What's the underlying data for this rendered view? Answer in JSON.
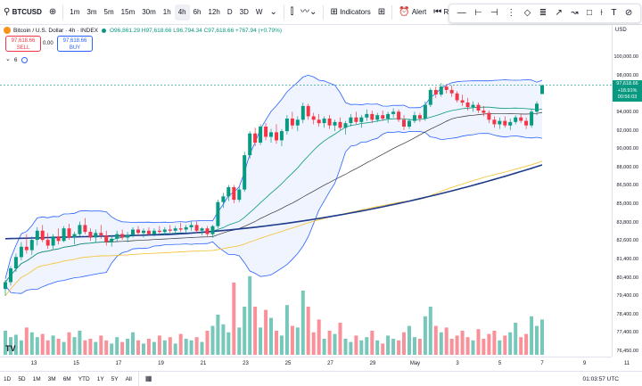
{
  "toolbar": {
    "symbol": "BTCUSD",
    "add_symbol_icon": "plus-circle-icon",
    "intervals": [
      "1m",
      "3m",
      "5m",
      "15m",
      "30m",
      "1h",
      "4h",
      "6h",
      "12h",
      "D",
      "3D",
      "W"
    ],
    "active_interval": "4h",
    "indicators_label": "Indicators",
    "alert_label": "Alert",
    "replay_label": "Repla"
  },
  "legend": {
    "title": "Bitcoin / U.S. Dollar · 4h · INDEX",
    "open": "O96,861.29",
    "high": "H97,618.66",
    "low": "L96,794.34",
    "close": "C97,618.66",
    "change": "+767.94 (+0.79%)"
  },
  "trade": {
    "sell_price": "97,618.66",
    "sell_label": "SELL",
    "spread": "0.00",
    "buy_price": "97,618.66",
    "buy_label": "BUY"
  },
  "indicator_row": {
    "count": "6"
  },
  "price_axis": {
    "currency": "USD",
    "ticks": [
      "100,000.00",
      "98,000.00",
      "96,000.00",
      "94,000.00",
      "92,000.00",
      "90,000.00",
      "88,000.00",
      "86,500.00",
      "85,000.00",
      "83,800.00",
      "82,600.00",
      "81,400.00",
      "80,400.00",
      "79,400.00",
      "78,400.00",
      "77,400.00",
      "76,450.00"
    ],
    "last_price": "97,618.66",
    "last_change": "+18.91%",
    "countdown": "00:56:03"
  },
  "time_axis": {
    "ticks": [
      "13",
      "15",
      "17",
      "19",
      "21",
      "23",
      "25",
      "27",
      "29",
      "May",
      "3",
      "5",
      "7",
      "9",
      "11"
    ]
  },
  "bottombar": {
    "ranges": [
      "1D",
      "5D",
      "1M",
      "3M",
      "6M",
      "YTD",
      "1Y",
      "5Y",
      "All"
    ],
    "calendar_icon": "calendar-icon",
    "clock": "01:03:57 UTC"
  },
  "colors": {
    "up": "#089981",
    "down": "#f23645",
    "bb_band": "#2962ff",
    "ma_long": "#1e3a8a",
    "ma_yellow": "#f5c542",
    "ma_dark": "#333333"
  },
  "chart_data": {
    "type": "candlestick",
    "interval": "4h",
    "x_start_label": "13",
    "y_range": [
      76450,
      100000
    ],
    "candles": [
      [
        79800,
        80600,
        79200,
        80400
      ],
      [
        80400,
        81800,
        80100,
        81600
      ],
      [
        81600,
        82900,
        81300,
        82600
      ],
      [
        82600,
        83900,
        82300,
        83500
      ],
      [
        83500,
        84600,
        82900,
        83200
      ],
      [
        83200,
        84400,
        82800,
        84100
      ],
      [
        84100,
        85200,
        83600,
        84900
      ],
      [
        84900,
        85400,
        83900,
        84100
      ],
      [
        84100,
        84700,
        83300,
        83600
      ],
      [
        83600,
        84600,
        83300,
        84400
      ],
      [
        84400,
        85100,
        83700,
        84000
      ],
      [
        84000,
        85300,
        83900,
        85100
      ],
      [
        85100,
        85500,
        84100,
        84300
      ],
      [
        84300,
        84800,
        83700,
        84600
      ],
      [
        84600,
        85700,
        84400,
        85400
      ],
      [
        85400,
        86000,
        84600,
        84800
      ],
      [
        84800,
        85100,
        84000,
        84300
      ],
      [
        84300,
        85000,
        83900,
        84700
      ],
      [
        84700,
        85400,
        84200,
        84500
      ],
      [
        84500,
        84900,
        83600,
        83900
      ],
      [
        83900,
        84500,
        83500,
        84200
      ],
      [
        84200,
        84900,
        83900,
        84600
      ],
      [
        84600,
        85000,
        84100,
        84300
      ],
      [
        84300,
        84800,
        83900,
        84500
      ],
      [
        84500,
        85200,
        84300,
        85000
      ],
      [
        85000,
        85300,
        84500,
        84700
      ],
      [
        84700,
        85100,
        84300,
        84900
      ],
      [
        84900,
        85200,
        84500,
        84600
      ],
      [
        84600,
        85100,
        84400,
        84900
      ],
      [
        84900,
        85300,
        84600,
        84800
      ],
      [
        84800,
        85200,
        84500,
        85000
      ],
      [
        85000,
        85400,
        84700,
        84900
      ],
      [
        84900,
        85300,
        84600,
        85100
      ],
      [
        85100,
        85600,
        84800,
        85000
      ],
      [
        85000,
        85400,
        84700,
        85200
      ],
      [
        85200,
        85700,
        84900,
        85400
      ],
      [
        85400,
        85700,
        84700,
        84900
      ],
      [
        84900,
        85200,
        84500,
        85100
      ],
      [
        85100,
        85300,
        84400,
        84600
      ],
      [
        84600,
        85400,
        84300,
        85300
      ],
      [
        85300,
        87600,
        85100,
        87400
      ],
      [
        87400,
        88200,
        86900,
        87900
      ],
      [
        87900,
        88900,
        87500,
        88700
      ],
      [
        88700,
        88900,
        87300,
        87600
      ],
      [
        87600,
        88700,
        87400,
        88500
      ],
      [
        88500,
        91800,
        88300,
        91500
      ],
      [
        91500,
        93600,
        91200,
        93400
      ],
      [
        93400,
        93900,
        92300,
        92600
      ],
      [
        92600,
        94200,
        92400,
        94000
      ],
      [
        94000,
        94300,
        92800,
        93100
      ],
      [
        93100,
        93800,
        92600,
        93500
      ],
      [
        93500,
        94200,
        92500,
        92800
      ],
      [
        92800,
        93800,
        92300,
        93600
      ],
      [
        93600,
        95000,
        93300,
        94700
      ],
      [
        94700,
        95300,
        93800,
        94100
      ],
      [
        94100,
        94900,
        93600,
        94600
      ],
      [
        94600,
        96100,
        94300,
        95800
      ],
      [
        95800,
        96000,
        94600,
        94900
      ],
      [
        94900,
        95200,
        94200,
        94600
      ],
      [
        94600,
        95100,
        94000,
        94300
      ],
      [
        94300,
        94900,
        93900,
        94700
      ],
      [
        94700,
        95000,
        93800,
        94100
      ],
      [
        94100,
        94600,
        93600,
        94400
      ],
      [
        94400,
        94800,
        93700,
        93900
      ],
      [
        93900,
        94500,
        93300,
        94300
      ],
      [
        94300,
        95100,
        94000,
        94800
      ],
      [
        94800,
        95300,
        94200,
        94400
      ],
      [
        94400,
        95000,
        93900,
        94800
      ],
      [
        94800,
        95500,
        94500,
        95100
      ],
      [
        95100,
        95400,
        94300,
        94600
      ],
      [
        94600,
        95200,
        94400,
        95000
      ],
      [
        95000,
        95400,
        94500,
        94700
      ],
      [
        94700,
        95300,
        94300,
        95100
      ],
      [
        95100,
        95600,
        94800,
        95300
      ],
      [
        95300,
        95500,
        94400,
        94600
      ],
      [
        94600,
        95000,
        93700,
        94000
      ],
      [
        94000,
        94700,
        93800,
        94500
      ],
      [
        94500,
        95300,
        94300,
        95000
      ],
      [
        95000,
        95200,
        94400,
        94700
      ],
      [
        94700,
        96200,
        94500,
        95900
      ],
      [
        95900,
        97400,
        95700,
        97200
      ],
      [
        97200,
        97500,
        96500,
        96800
      ],
      [
        96800,
        97800,
        96600,
        97500
      ],
      [
        97500,
        97700,
        96900,
        97200
      ],
      [
        97200,
        97600,
        96600,
        96900
      ],
      [
        96900,
        97100,
        96100,
        96300
      ],
      [
        96300,
        96800,
        95800,
        96100
      ],
      [
        96100,
        96500,
        95400,
        95700
      ],
      [
        95700,
        96200,
        95300,
        95900
      ],
      [
        95900,
        96100,
        95200,
        95400
      ],
      [
        95400,
        95800,
        94900,
        95200
      ],
      [
        95200,
        95400,
        94300,
        94600
      ],
      [
        94600,
        94900,
        93900,
        94200
      ],
      [
        94200,
        94800,
        93800,
        94500
      ],
      [
        94500,
        94900,
        93900,
        94100
      ],
      [
        94100,
        94700,
        93700,
        94400
      ],
      [
        94400,
        95000,
        94200,
        94800
      ],
      [
        94800,
        95100,
        94300,
        94500
      ],
      [
        94500,
        94800,
        93800,
        94100
      ],
      [
        94100,
        95500,
        93900,
        95300
      ],
      [
        95300,
        96200,
        95000,
        96000
      ],
      [
        96861,
        97619,
        96794,
        97619
      ]
    ],
    "volumes": [
      30,
      22,
      25,
      18,
      34,
      28,
      22,
      26,
      18,
      24,
      20,
      16,
      28,
      22,
      30,
      18,
      20,
      16,
      24,
      18,
      14,
      22,
      16,
      20,
      28,
      18,
      14,
      20,
      16,
      24,
      18,
      22,
      14,
      26,
      20,
      18,
      22,
      16,
      30,
      36,
      50,
      38,
      28,
      90,
      34,
      60,
      98,
      60,
      34,
      56,
      46,
      30,
      24,
      62,
      36,
      34,
      80,
      60,
      28,
      44,
      20,
      30,
      26,
      40,
      20,
      16,
      24,
      18,
      22,
      30,
      18,
      14,
      24,
      20,
      18,
      28,
      36,
      22,
      20,
      48,
      60,
      36,
      28,
      34,
      20,
      24,
      30,
      22,
      18,
      32,
      20,
      26,
      30,
      18,
      24,
      28,
      40,
      22,
      26,
      48,
      36,
      44
    ]
  }
}
